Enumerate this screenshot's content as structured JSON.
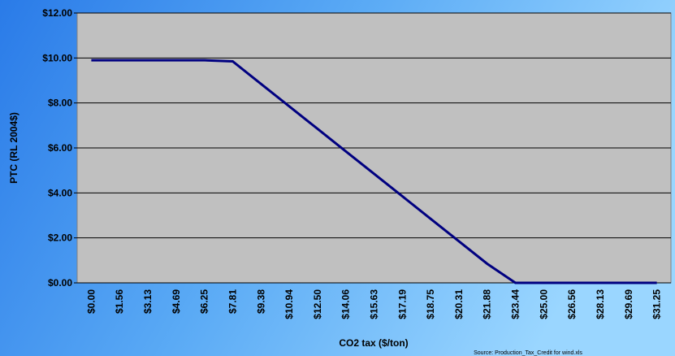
{
  "chart_data": {
    "type": "line",
    "x_label": "CO2 tax ($/ton)",
    "y_label": "PTC (RL 2004$)",
    "source": "Source:  Production_Tax_Credit for wind.xls",
    "categories": [
      "$0.00",
      "$1.56",
      "$3.13",
      "$4.69",
      "$6.25",
      "$7.81",
      "$9.38",
      "$10.94",
      "$12.50",
      "$14.06",
      "$15.63",
      "$17.19",
      "$18.75",
      "$20.31",
      "$21.88",
      "$23.44",
      "$25.00",
      "$26.56",
      "$28.13",
      "$29.69",
      "$31.25"
    ],
    "series": [
      {
        "name": "PTC",
        "color": "#000080",
        "values": [
          9.9,
          9.9,
          9.9,
          9.9,
          9.9,
          9.85,
          8.85,
          7.85,
          6.85,
          5.85,
          4.85,
          3.85,
          2.85,
          1.85,
          0.85,
          0,
          0,
          0,
          0,
          0,
          0
        ]
      }
    ],
    "ylim": [
      0,
      12
    ],
    "yticks": [
      {
        "value": 0,
        "label": "$0.00"
      },
      {
        "value": 2,
        "label": "$2.00"
      },
      {
        "value": 4,
        "label": "$4.00"
      },
      {
        "value": 6,
        "label": "$6.00"
      },
      {
        "value": 8,
        "label": "$8.00"
      },
      {
        "value": 10,
        "label": "$10.00"
      },
      {
        "value": 12,
        "label": "$12.00"
      }
    ],
    "grid": true
  }
}
